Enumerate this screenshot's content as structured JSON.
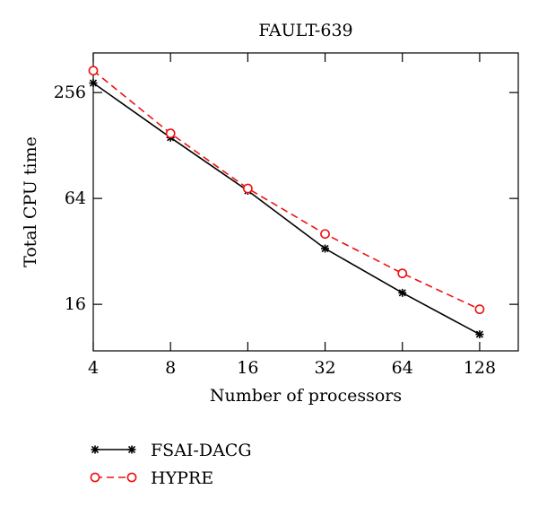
{
  "chart_data": {
    "type": "line",
    "title": "FAULT-639",
    "xlabel": "Number of processors",
    "ylabel": "Total CPU time",
    "x_scale": "log2",
    "y_scale": "log2",
    "x": [
      4,
      8,
      16,
      32,
      64,
      128
    ],
    "xticks": [
      "4",
      "8",
      "16",
      "32",
      "64",
      "128"
    ],
    "xlim": [
      4,
      181
    ],
    "yticks": [
      "16",
      "64",
      "256"
    ],
    "ytick_values": [
      16,
      64,
      256
    ],
    "ylim": [
      8.7,
      430
    ],
    "grid": false,
    "legend_position": "below-left",
    "series": [
      {
        "name": "FSAI-DACG",
        "values": [
          290,
          142,
          70.8,
          33.2,
          18.6,
          10.8
        ],
        "color": "#000000",
        "line_style": "solid",
        "marker": "asterisk"
      },
      {
        "name": "HYPRE",
        "values": [
          341,
          150,
          72.9,
          40.2,
          24.0,
          15.0
        ],
        "color": "#ee1111",
        "line_style": "dashed",
        "marker": "open-circle"
      }
    ]
  }
}
